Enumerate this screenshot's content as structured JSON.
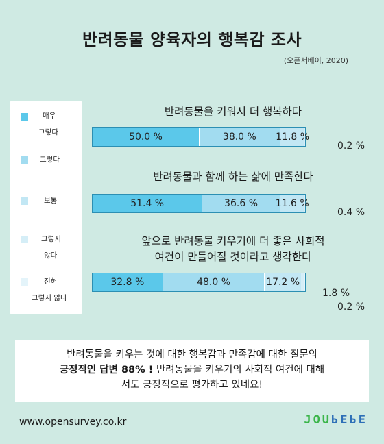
{
  "header": {
    "title": "반려동물 양육자의 행복감 조사",
    "source": "(오픈서베이, 2020)"
  },
  "legend": [
    {
      "line1": "매우",
      "line2": "그렇다",
      "color": "#5bc8ea"
    },
    {
      "line1": "그렇다",
      "line2": "",
      "color": "#a2dcf0"
    },
    {
      "line1": "보통",
      "line2": "",
      "color": "#c2e7f4"
    },
    {
      "line1": "그렇지",
      "line2": "않다",
      "color": "#d5eef7"
    },
    {
      "line1": "전혀",
      "line2": "그렇지 않다",
      "color": "#e4f4fa"
    }
  ],
  "chart_data": [
    {
      "type": "bar",
      "title": "반려동물을 키워서 더 행복하다",
      "categories": [
        "매우 그렇다",
        "그렇다",
        "보통",
        "그렇지 않다",
        "전혀 그렇지 않다"
      ],
      "values": [
        50.0,
        38.0,
        11.8,
        0.2,
        0.0
      ],
      "labels": [
        "50.0 %",
        "38.0 %",
        "11.8 %",
        "0.2 %",
        ""
      ]
    },
    {
      "type": "bar",
      "title": "반려동물과 함께 하는 삶에 만족한다",
      "categories": [
        "매우 그렇다",
        "그렇다",
        "보통",
        "그렇지 않다",
        "전혀 그렇지 않다"
      ],
      "values": [
        51.4,
        36.6,
        11.6,
        0.4,
        0.0
      ],
      "labels": [
        "51.4 %",
        "36.6 %",
        "11.6 %",
        "0.4 %",
        ""
      ]
    },
    {
      "type": "bar",
      "title_line1": "앞으로 반려동물 키우기에 더 좋은 사회적",
      "title_line2": "여건이 만들어질 것이라고 생각한다",
      "categories": [
        "매우 그렇다",
        "그렇다",
        "보통",
        "그렇지 않다",
        "전혀 그렇지 않다"
      ],
      "values": [
        32.8,
        48.0,
        17.2,
        1.8,
        0.2
      ],
      "labels": [
        "32.8 %",
        "48.0 %",
        "17.2 %",
        "1.8 %",
        "0.2 %"
      ]
    }
  ],
  "summary": {
    "line1": "반려동물을 키우는 것에 대한 행복감과 만족감에 대한 질문의",
    "line2_bold": "긍정적인 답변 88% !",
    "line2_rest": " 반려동물을 키우기의 사회적 여건에 대해",
    "line3": "서도 긍정적으로 평가하고 있네요!"
  },
  "footer": {
    "url": "www.opensurvey.co.kr",
    "logo_a": "JOU",
    "logo_b": "ЬΕЬΕ"
  }
}
